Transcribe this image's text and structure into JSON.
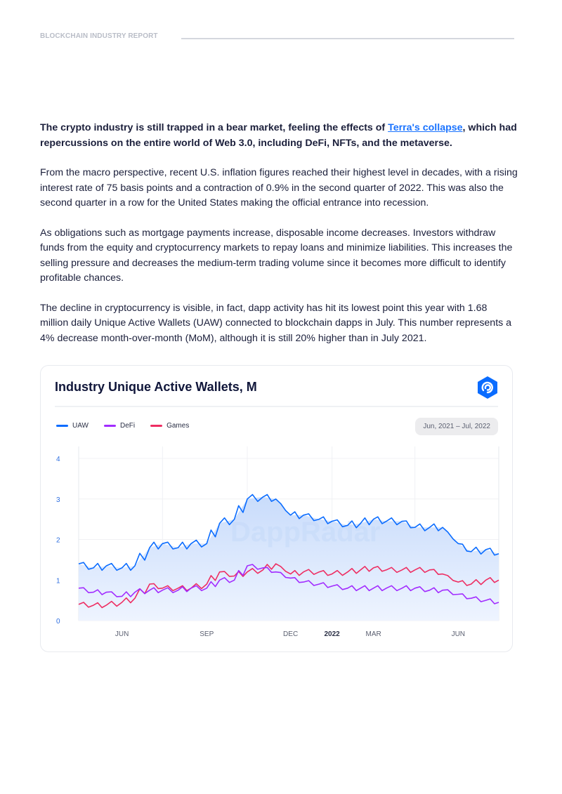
{
  "header": {
    "label": "BLOCKCHAIN INDUSTRY REPORT"
  },
  "article": {
    "lead_before": "The crypto industry is still trapped in a bear market, feeling the effects of ",
    "lead_link": "Terra's collapse",
    "lead_after": ", which had repercussions on the entire world of Web 3.0, including DeFi, NFTs, and the metaverse.",
    "paragraphs": [
      "From the macro perspective, recent U.S. inflation figures reached their highest level in decades, with a rising interest rate of 75 basis points and a contraction of 0.9% in the second quarter of 2022. This was also the second quarter in a row for the United States making the official entrance into recession.",
      "As obligations such as mortgage payments increase, disposable income decreases. Investors withdraw funds from the equity and cryptocurrency markets to repay loans and minimize liabilities. This increases the selling pressure and decreases the medium-term trading volume since it becomes more difficult to identify profitable chances.",
      "The decline in cryptocurrency is visible, in fact, dapp activity has hit its lowest point this year with 1.68 million daily Unique Active Wallets (UAW) connected to blockchain dapps in July. This number represents a 4% decrease month-over-month (MoM), although it is still 20% higher than in July 2021."
    ]
  },
  "chart_card": {
    "title": "Industry Unique Active Wallets, M",
    "logo_icon": "dappradar-logo-icon",
    "watermark": "DappRadar",
    "date_range": "Jun, 2021 – Jul, 2022"
  },
  "chart_data": {
    "type": "area",
    "title": "Industry Unique Active Wallets, M",
    "ylim": [
      0,
      4
    ],
    "yticks": [
      "0",
      "1",
      "2",
      "3",
      "4"
    ],
    "xticks": [
      {
        "label": "JUN",
        "date": "2021-06-01"
      },
      {
        "label": "SEP",
        "date": "2021-09-01"
      },
      {
        "label": "DEC",
        "date": "2021-12-01"
      },
      {
        "label": "2022",
        "date": "2022-01-15"
      },
      {
        "label": "MAR",
        "date": "2022-03-01"
      },
      {
        "label": "JUN",
        "date": "2022-06-01"
      }
    ],
    "grid": true,
    "legend": "top-left",
    "x": [
      "2021-04-15",
      "2021-05-01",
      "2021-05-15",
      "2021-06-01",
      "2021-06-15",
      "2021-07-01",
      "2021-07-15",
      "2021-08-01",
      "2021-08-15",
      "2021-09-01",
      "2021-09-15",
      "2021-10-01",
      "2021-10-15",
      "2021-11-01",
      "2021-11-15",
      "2021-12-01",
      "2021-12-15",
      "2022-01-01",
      "2022-01-15",
      "2022-02-01",
      "2022-02-15",
      "2022-03-01",
      "2022-03-15",
      "2022-04-01",
      "2022-04-15",
      "2022-05-01",
      "2022-05-15",
      "2022-06-01",
      "2022-06-15",
      "2022-07-01",
      "2022-07-15"
    ],
    "series": [
      {
        "name": "UAW",
        "color": "#0a6cff",
        "values": [
          1.4,
          1.3,
          1.35,
          1.3,
          1.35,
          1.8,
          1.9,
          1.8,
          1.9,
          1.9,
          2.4,
          2.5,
          3.0,
          3.05,
          3.0,
          2.6,
          2.6,
          2.5,
          2.45,
          2.35,
          2.4,
          2.5,
          2.45,
          2.45,
          2.3,
          2.3,
          2.3,
          1.9,
          1.7,
          1.75,
          1.65
        ]
      },
      {
        "name": "DeFi",
        "color": "#a22cff",
        "values": [
          0.8,
          0.7,
          0.7,
          0.6,
          0.7,
          0.75,
          0.75,
          0.75,
          0.8,
          0.8,
          1.0,
          1.0,
          1.35,
          1.3,
          1.2,
          1.05,
          0.95,
          0.9,
          0.85,
          0.8,
          0.8,
          0.8,
          0.8,
          0.8,
          0.8,
          0.75,
          0.75,
          0.65,
          0.55,
          0.5,
          0.45
        ]
      },
      {
        "name": "Games",
        "color": "#ee2d62",
        "values": [
          0.4,
          0.38,
          0.38,
          0.45,
          0.55,
          0.9,
          0.8,
          0.8,
          0.8,
          0.9,
          1.2,
          1.1,
          1.2,
          1.25,
          1.4,
          1.15,
          1.2,
          1.2,
          1.15,
          1.2,
          1.25,
          1.3,
          1.25,
          1.25,
          1.25,
          1.25,
          1.15,
          0.95,
          0.9,
          1.0,
          1.0
        ]
      }
    ]
  }
}
